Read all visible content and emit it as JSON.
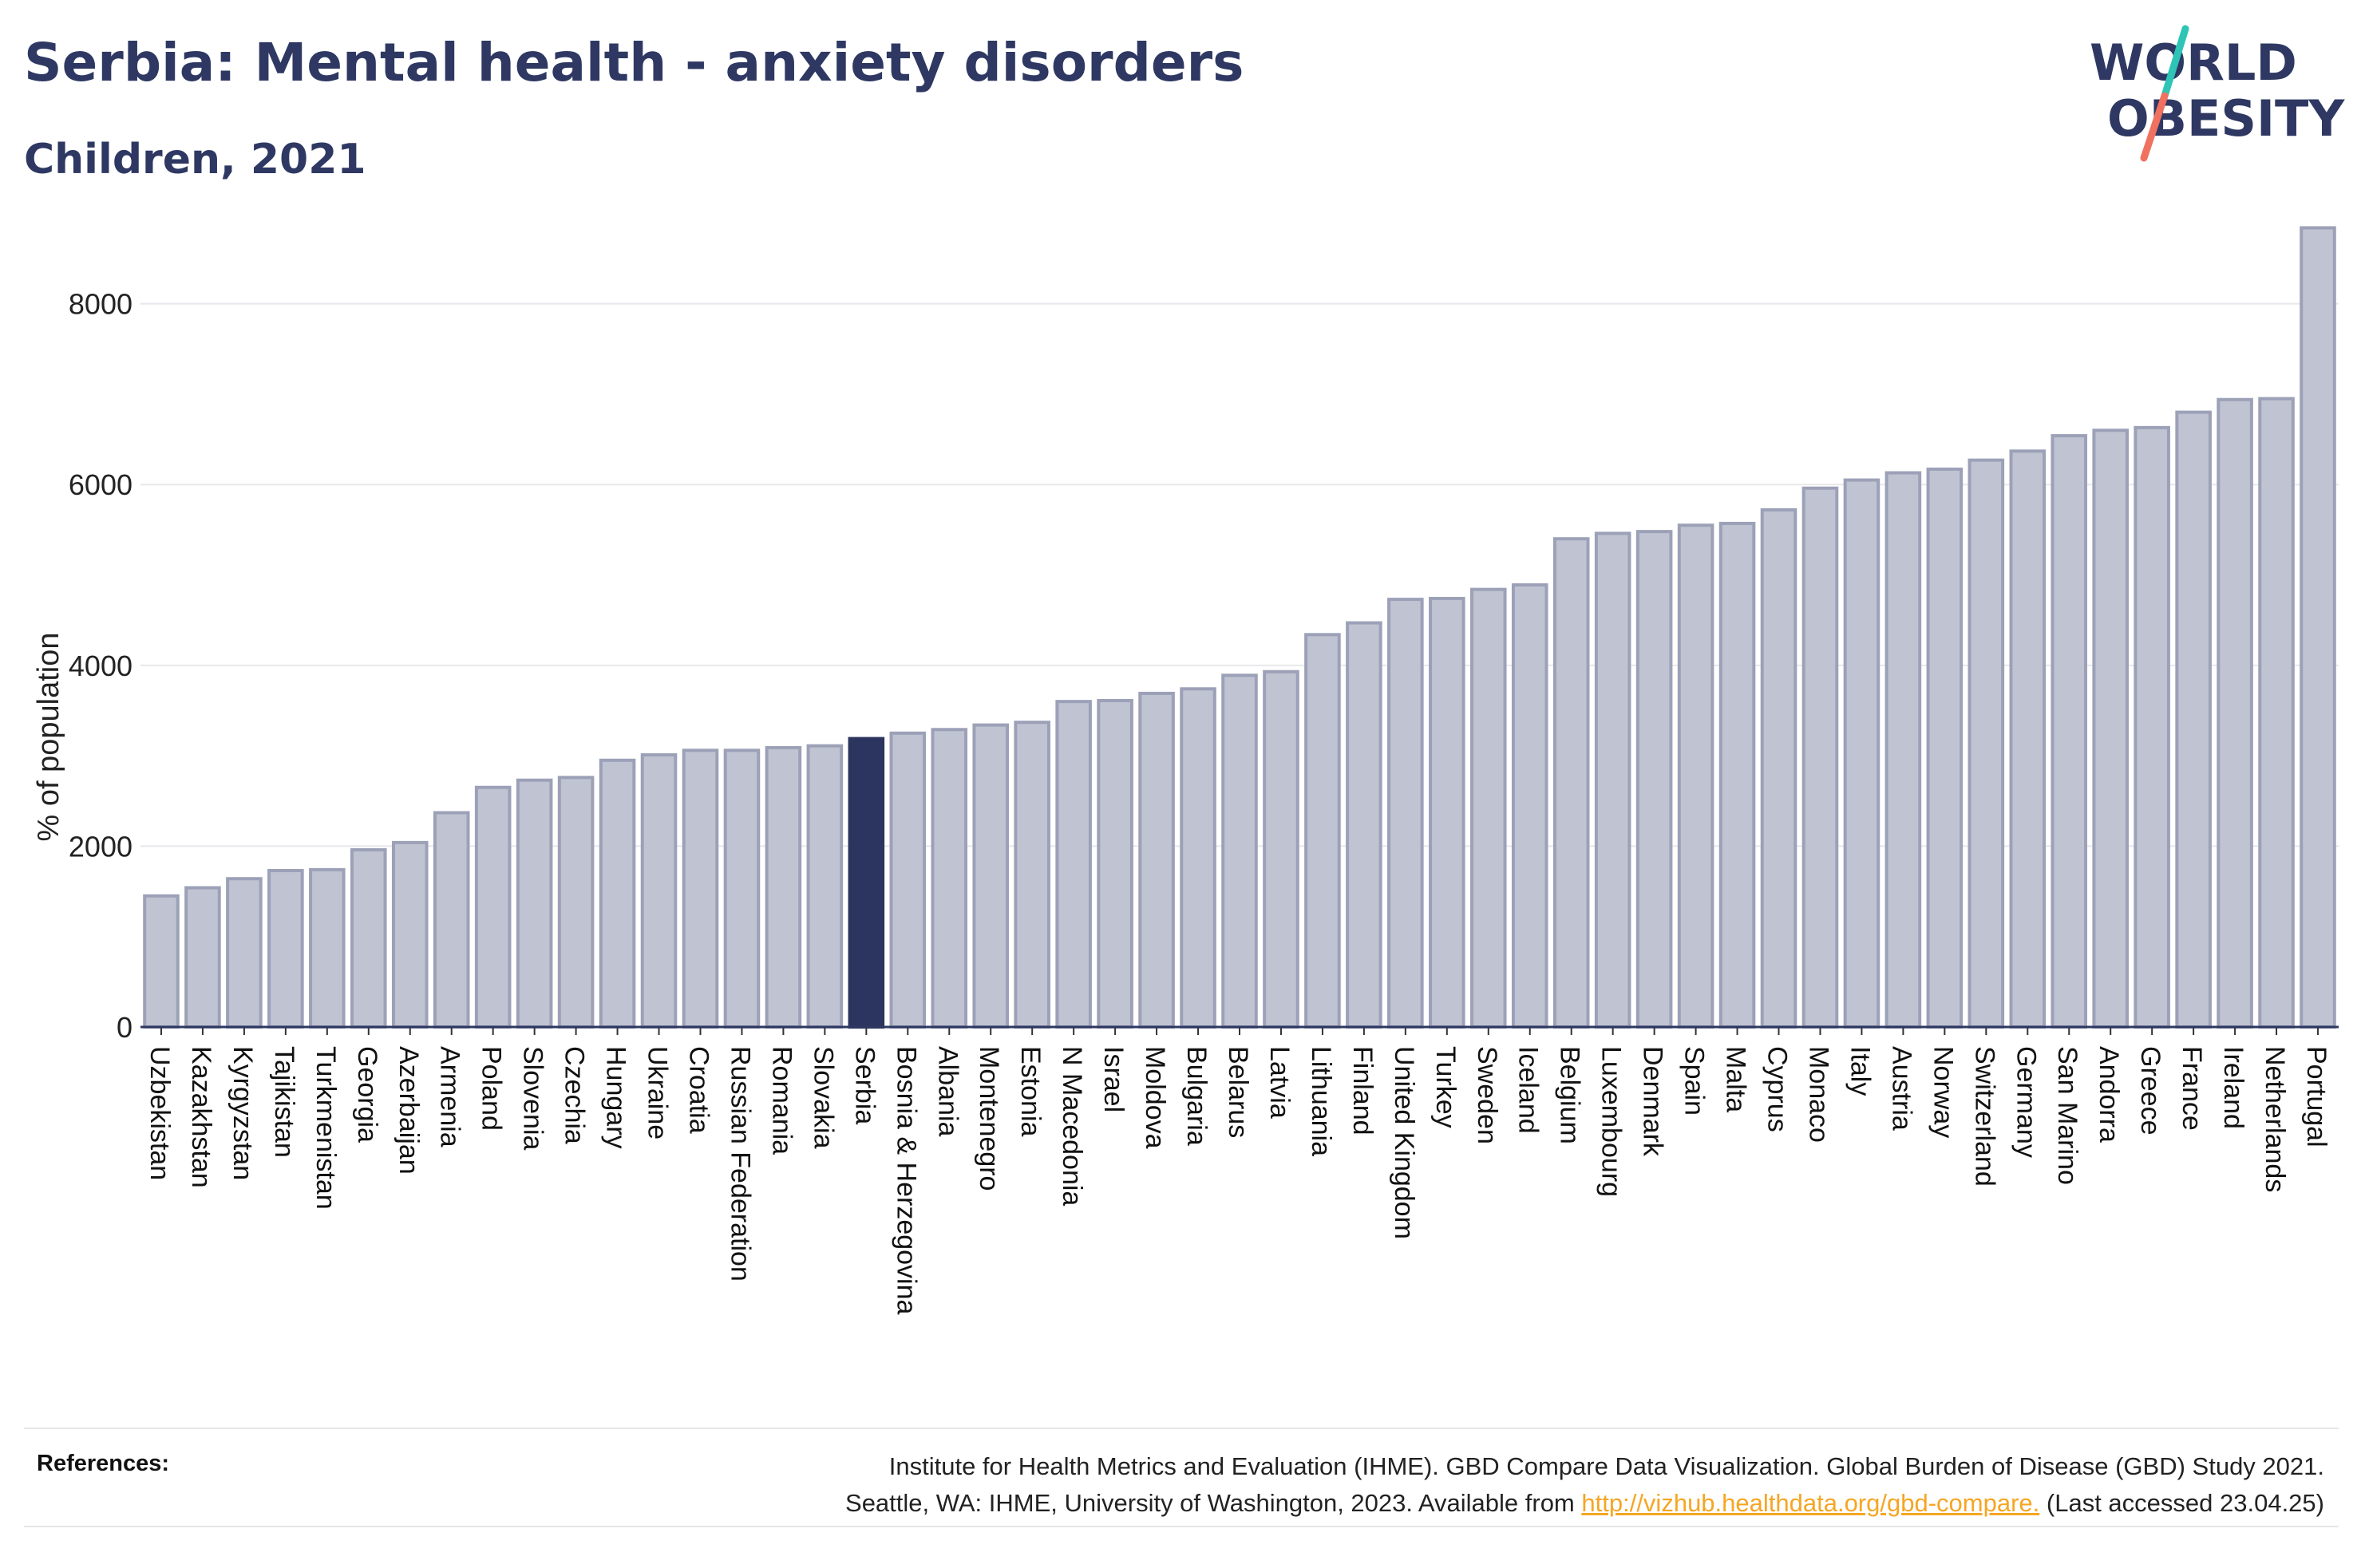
{
  "header": {
    "title": "Serbia: Mental health - anxiety disorders",
    "subtitle": "Children, 2021"
  },
  "logo": {
    "line1": "WORLD",
    "line2": "OBESITY",
    "slash_colors": [
      "#2ec4b6",
      "#f0715f"
    ]
  },
  "colors": {
    "bar": "#c0c3d1",
    "bar_stroke": "#9ca1b8",
    "highlight": "#2b355f",
    "text": "#2e3862"
  },
  "chart_data": {
    "type": "bar",
    "ylabel": "% of population",
    "ylim": [
      0,
      8800
    ],
    "yticks": [
      0,
      2000,
      4000,
      6000,
      8000
    ],
    "highlight": "Serbia",
    "categories": [
      "Uzbekistan",
      "Kazakhstan",
      "Kyrgyzstan",
      "Tajikistan",
      "Turkmenistan",
      "Georgia",
      "Azerbaijan",
      "Armenia",
      "Poland",
      "Slovenia",
      "Czechia",
      "Hungary",
      "Ukraine",
      "Croatia",
      "Russian Federation",
      "Romania",
      "Slovakia",
      "Serbia",
      "Bosnia & Herzegovina",
      "Albania",
      "Montenegro",
      "Estonia",
      "N Macedonia",
      "Israel",
      "Moldova",
      "Bulgaria",
      "Belarus",
      "Latvia",
      "Lithuania",
      "Finland",
      "United Kingdom",
      "Turkey",
      "Sweden",
      "Iceland",
      "Belgium",
      "Luxembourg",
      "Denmark",
      "Spain",
      "Malta",
      "Cyprus",
      "Monaco",
      "Italy",
      "Austria",
      "Norway",
      "Switzerland",
      "Germany",
      "San Marino",
      "Andorra",
      "Greece",
      "France",
      "Ireland",
      "Netherlands",
      "Portugal"
    ],
    "values": [
      1450,
      1540,
      1640,
      1730,
      1740,
      1960,
      2040,
      2370,
      2650,
      2730,
      2760,
      2950,
      3010,
      3060,
      3060,
      3090,
      3110,
      3190,
      3250,
      3290,
      3340,
      3370,
      3600,
      3610,
      3690,
      3740,
      3890,
      3930,
      4340,
      4470,
      4730,
      4740,
      4840,
      4890,
      5400,
      5460,
      5480,
      5550,
      5570,
      5720,
      5960,
      6050,
      6130,
      6170,
      6270,
      6370,
      6540,
      6600,
      6630,
      6800,
      6940,
      6950,
      8840
    ]
  },
  "footer": {
    "references_label": "References:",
    "ref_line1": "Institute for Health Metrics and Evaluation (IHME). GBD Compare Data Visualization. Global Burden of Disease (GBD) Study 2021.",
    "ref_line2_pre": "Seattle, WA: IHME, University of Washington, 2023. Available from",
    "ref_link": "http://vizhub.healthdata.org/gbd-compare.",
    "ref_line2_post": "(Last accessed 23.04.25)"
  }
}
